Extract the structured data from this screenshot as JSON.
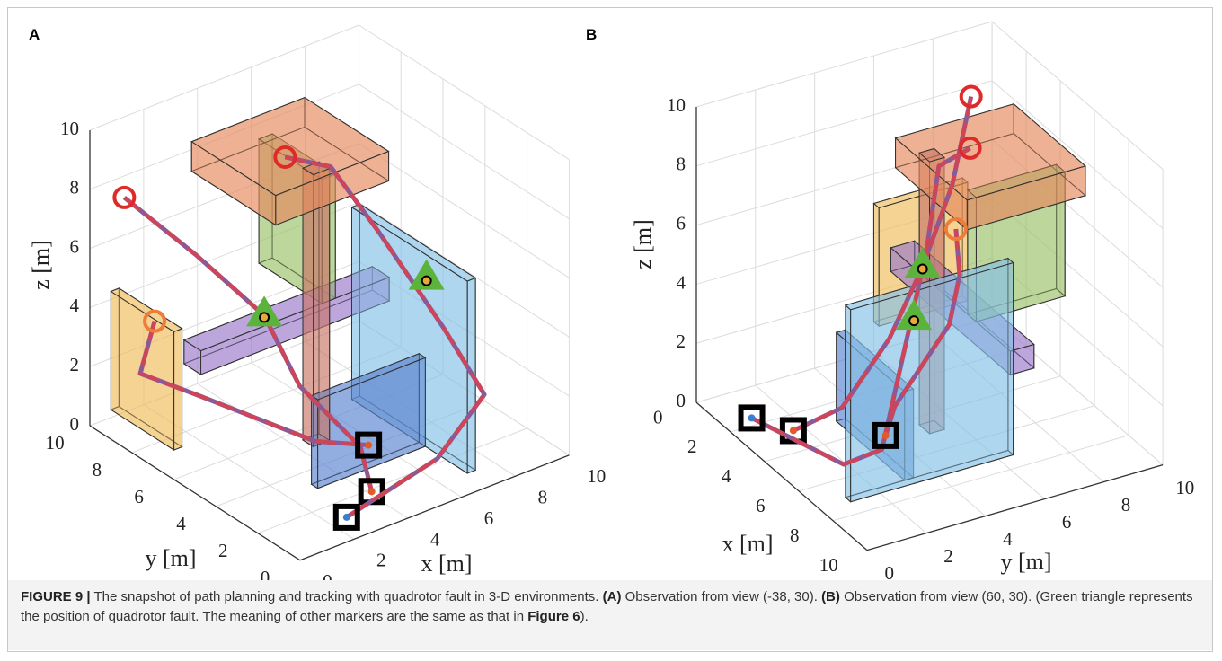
{
  "panels": [
    {
      "label": "A",
      "x_label": "x [m]",
      "y_label": "y [m]",
      "z_label": "z [m]",
      "x_ticks": [
        0,
        2,
        4,
        6,
        8,
        10
      ],
      "y_ticks": [
        0,
        2,
        4,
        6,
        8,
        10
      ],
      "z_ticks": [
        0,
        2,
        4,
        6,
        8,
        10
      ]
    },
    {
      "label": "B",
      "x_label": "x [m]",
      "y_label": "y [m]",
      "z_label": "z [m]",
      "x_ticks": [
        0,
        2,
        4,
        6,
        8,
        10
      ],
      "y_ticks": [
        0,
        2,
        4,
        6,
        8,
        10
      ],
      "z_ticks": [
        0,
        2,
        4,
        6,
        8,
        10
      ]
    }
  ],
  "caption": {
    "label": "FIGURE 9 |",
    "text": "The snapshot of path planning and tracking with quadrotor fault in 3-D environments.",
    "a_label": "(A)",
    "a_text": "Observation from view (-38, 30).",
    "b_label": "(B)",
    "b_text": "Observation from view (60, 30).",
    "note": "(Green triangle represents the position of quadrotor fault. The meaning of other markers are the same as that in",
    "ref": "Figure 6",
    "end": ")."
  }
}
